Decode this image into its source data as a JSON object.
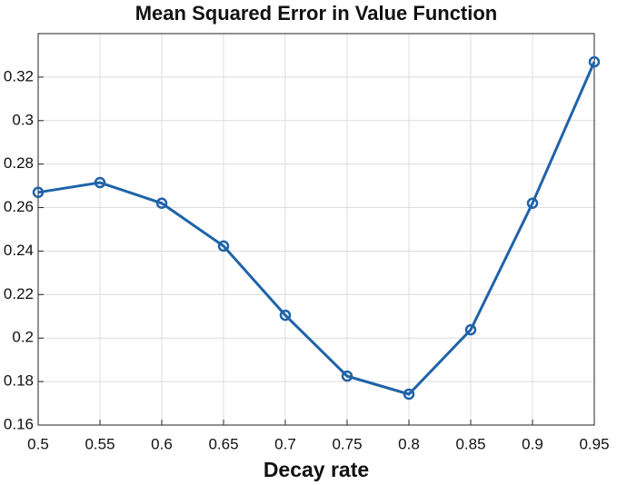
{
  "chart_data": {
    "type": "line",
    "title": "Mean Squared Error in Value Function",
    "x_label": "Decay rate",
    "x": [
      0.5,
      0.55,
      0.6,
      0.65,
      0.7,
      0.75,
      0.8,
      0.85,
      0.9,
      0.95
    ],
    "series": [
      {
        "color": "#1f63a8",
        "values": [
          0.267,
          0.2715,
          0.262,
          0.2423,
          0.2105,
          0.1825,
          0.1742,
          0.2038,
          0.262,
          0.327
        ]
      }
    ],
    "xlim": [
      0.5,
      0.95
    ],
    "xticks": [
      0.5,
      0.55,
      0.6,
      0.65,
      0.7,
      0.75,
      0.8,
      0.85,
      0.9,
      0.95
    ],
    "ylim": [
      0.16,
      0.34
    ],
    "yticks": [
      0.16,
      0.18,
      0.2,
      0.22,
      0.24,
      0.26,
      0.28,
      0.3,
      0.32
    ],
    "grid": true,
    "markers": "circle"
  }
}
